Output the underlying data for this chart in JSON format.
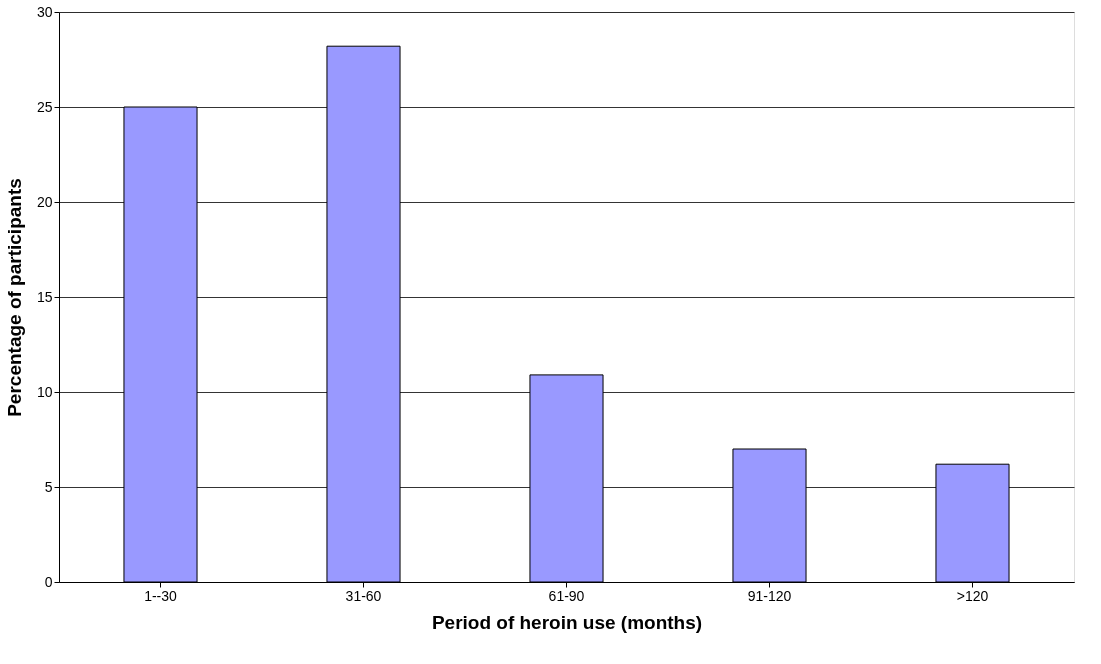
{
  "chart_data": {
    "type": "bar",
    "xlabel": "Period of heroin use (months)",
    "ylabel": "Percentage of participants",
    "categories": [
      "1--30",
      "31-60",
      "61-90",
      "91-120",
      ">120"
    ],
    "values": [
      25,
      28.2,
      10.9,
      7,
      6.2
    ],
    "color": "#9999ff",
    "ylim": [
      0,
      30
    ],
    "yticks": [
      0,
      5,
      10,
      15,
      20,
      25,
      30
    ],
    "grid": "y"
  }
}
